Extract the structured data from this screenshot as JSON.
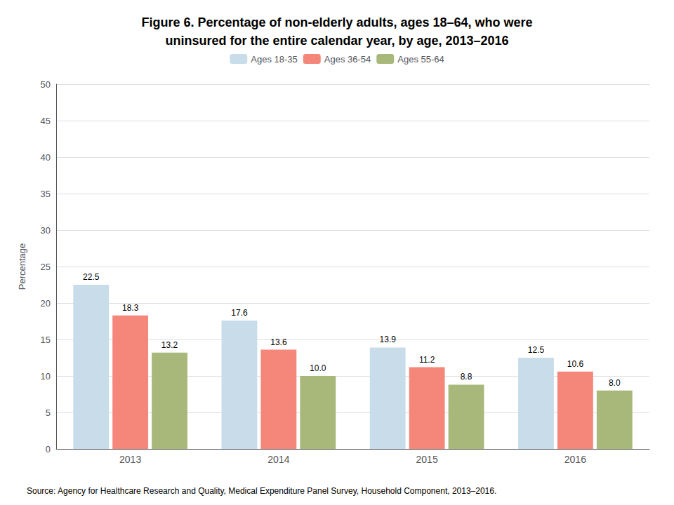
{
  "chart_data": {
    "type": "bar",
    "title": "Figure 6. Percentage of non-elderly adults, ages 18–64, who were\nuninsured for the entire calendar year, by age, 2013–2016",
    "categories": [
      "2013",
      "2014",
      "2015",
      "2016"
    ],
    "series": [
      {
        "name": "Ages 18-35",
        "color": "#c8dcea",
        "values": [
          22.5,
          17.6,
          13.9,
          12.5
        ]
      },
      {
        "name": "Ages 36-54",
        "color": "#f4867a",
        "values": [
          18.3,
          13.6,
          11.2,
          10.6
        ]
      },
      {
        "name": "Ages 55-64",
        "color": "#a8b87a",
        "values": [
          13.2,
          10.0,
          8.8,
          8.0
        ],
        "value_labels": [
          "13.2",
          "10.0",
          "8.8",
          "8.0"
        ]
      }
    ],
    "ylabel": "Percentage",
    "ylim": [
      0,
      50
    ],
    "yticks": [
      0,
      5,
      10,
      15,
      20,
      25,
      30,
      35,
      40,
      45,
      50
    ],
    "grid": true,
    "legend": "top",
    "data_labels": true,
    "annotations": [
      "Source: Agency for Healthcare Research and Quality, Medical Expenditure Panel Survey, Household Component, 2013–2016."
    ]
  }
}
